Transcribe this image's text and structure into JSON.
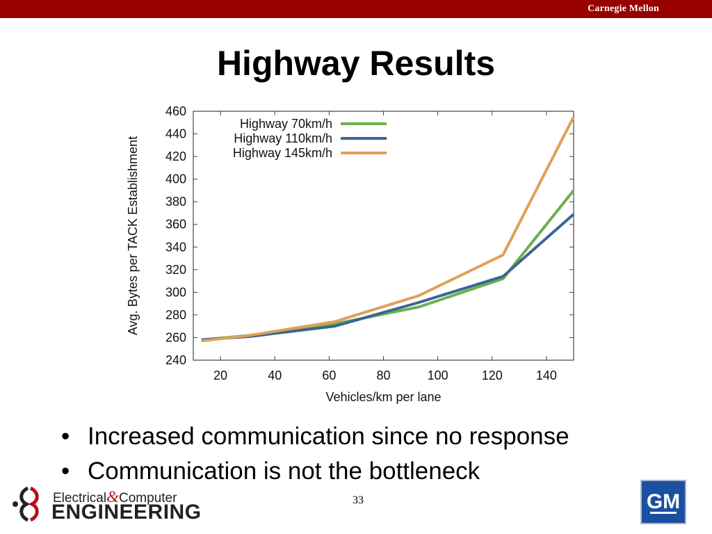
{
  "header": {
    "institution": "Carnegie Mellon"
  },
  "slide": {
    "title": "Highway Results",
    "bullets": [
      "Increased communication since no response",
      "Communication is not the bottleneck"
    ],
    "page_number": "33"
  },
  "footer": {
    "logo_line1_a": "Electrical",
    "logo_line1_amp": "&",
    "logo_line1_b": "Computer",
    "logo_line2": "ENGINEERING",
    "sponsor_logo": "GM"
  },
  "chart_data": {
    "type": "line",
    "title": "",
    "xlabel": "Vehicles/km per lane",
    "ylabel": "Avg. Bytes per TACK Establishment",
    "xlim": [
      10,
      150
    ],
    "ylim": [
      240,
      460
    ],
    "xticks": [
      20,
      40,
      60,
      80,
      100,
      120,
      140
    ],
    "yticks": [
      240,
      260,
      280,
      300,
      320,
      340,
      360,
      380,
      400,
      420,
      440,
      460
    ],
    "grid": false,
    "legend_position": "top-left",
    "series": [
      {
        "name": "Highway 70km/h",
        "color": "#6ab04c",
        "x": [
          13,
          31,
          62,
          93,
          124,
          150
        ],
        "y": [
          258,
          262,
          272,
          287,
          312,
          390
        ]
      },
      {
        "name": "Highway 110km/h",
        "color": "#3b6593",
        "x": [
          13,
          31,
          62,
          93,
          124,
          150
        ],
        "y": [
          258,
          261,
          270,
          291,
          314,
          369
        ]
      },
      {
        "name": "Highway 145km/h",
        "color": "#e0a057",
        "x": [
          13,
          31,
          62,
          93,
          124,
          150
        ],
        "y": [
          257,
          262,
          274,
          297,
          333,
          455
        ]
      }
    ]
  }
}
